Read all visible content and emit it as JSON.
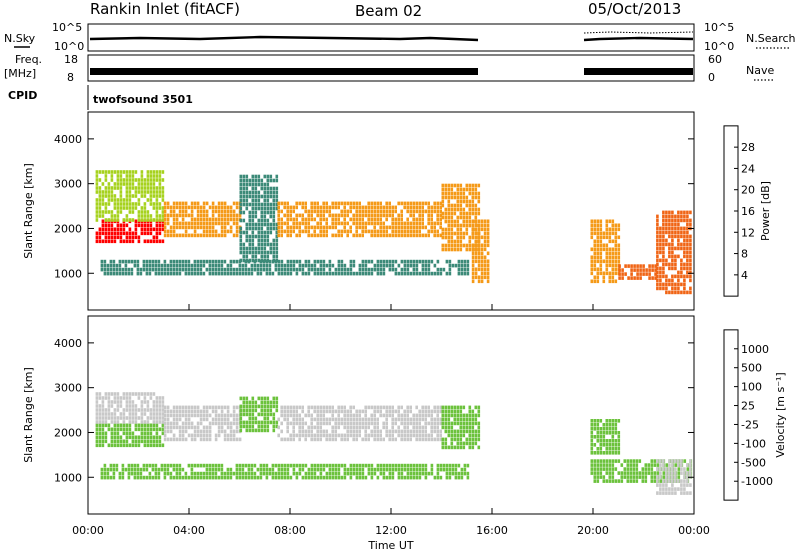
{
  "header": {
    "station": "Rankin Inlet (fitACF)",
    "beam": "Beam 02",
    "date": "05/Oct/2013"
  },
  "top_panels": {
    "nsky_label": "N.Sky",
    "nsky_ticks": [
      "10^5",
      "10^0"
    ],
    "nsearch_label": "N.Search",
    "nsearch_ticks": [
      "10^5",
      "10^0"
    ],
    "freq_label": "Freq.",
    "freq_unit": "[MHz]",
    "freq_ticks": [
      "18",
      "8"
    ],
    "nave_label": "Nave",
    "nave_ticks": [
      "60",
      "0"
    ],
    "cpid_label": "CPID",
    "cpid_value": "twofsound 3501"
  },
  "power_colorbar": {
    "label": "Power [dB]",
    "ticks": [
      "28",
      "24",
      "20",
      "16",
      "12",
      "8",
      "4"
    ],
    "colors": [
      "#0000ff",
      "#1e50c8",
      "#3c8a78",
      "#4cb83e",
      "#a6d21e",
      "#e8c81a",
      "#f59a18",
      "#f06414",
      "#ff0000"
    ]
  },
  "velocity_colorbar": {
    "label": "Velocity  [m s⁻¹]",
    "ticks": [
      "1000",
      "500",
      "100",
      "25",
      "-25",
      "-100",
      "-500",
      "-1000"
    ],
    "colors": [
      "#1e3cc8",
      "#2a6aa8",
      "#3c9a70",
      "#6cc23c",
      "#c8c8c8",
      "#f5a01a",
      "#f06414",
      "#ff0000"
    ]
  },
  "axes": {
    "ylabel": "Slant Range [km]",
    "yticks": [
      "4000",
      "3000",
      "2000",
      "1000"
    ],
    "xlabel": "Time UT",
    "xticks": [
      "00:00",
      "04:00",
      "08:00",
      "12:00",
      "16:00",
      "20:00",
      "00:00"
    ]
  },
  "chart_data": [
    {
      "type": "heatmap",
      "title": "",
      "quantity": "Power",
      "unit": "dB",
      "xlabel": "Time UT",
      "ylabel": "Slant Range [km]",
      "xlim_hours": [
        0,
        24
      ],
      "ylim": [
        180,
        4600
      ],
      "zlim": [
        0,
        30
      ],
      "data_gaps_hours": [
        [
          15.8,
          19.8
        ]
      ],
      "regions": [
        {
          "t": [
            0.3,
            3.0
          ],
          "range": [
            1700,
            2200
          ],
          "value": 29
        },
        {
          "t": [
            0.3,
            3.0
          ],
          "range": [
            2200,
            3300
          ],
          "value": 16
        },
        {
          "t": [
            3.0,
            6.0
          ],
          "range": [
            1800,
            2600
          ],
          "value": 22
        },
        {
          "t": [
            6.0,
            7.5
          ],
          "range": [
            1300,
            3200
          ],
          "value": 9
        },
        {
          "t": [
            7.5,
            14.0
          ],
          "range": [
            1800,
            2600
          ],
          "value": 22
        },
        {
          "t": [
            14.0,
            15.5
          ],
          "range": [
            1500,
            3000
          ],
          "value": 24
        },
        {
          "t": [
            15.2,
            15.8
          ],
          "range": [
            800,
            2200
          ],
          "value": 22
        },
        {
          "t": [
            0.5,
            15.0
          ],
          "range": [
            1000,
            1300
          ],
          "value": 7
        },
        {
          "t": [
            19.9,
            21.0
          ],
          "range": [
            800,
            2200
          ],
          "value": 24
        },
        {
          "t": [
            21.0,
            22.5
          ],
          "range": [
            900,
            1200
          ],
          "value": 26
        },
        {
          "t": [
            22.5,
            23.9
          ],
          "range": [
            600,
            2400
          ],
          "value": 25
        }
      ]
    },
    {
      "type": "heatmap",
      "title": "",
      "quantity": "Velocity",
      "unit": "m s-1",
      "xlabel": "Time UT",
      "ylabel": "Slant Range [km]",
      "xlim_hours": [
        0,
        24
      ],
      "ylim": [
        180,
        4600
      ],
      "zlim": [
        -1000,
        1000
      ],
      "data_gaps_hours": [
        [
          15.8,
          19.8
        ]
      ],
      "regions": [
        {
          "t": [
            0.3,
            3.0
          ],
          "range": [
            1700,
            2200
          ],
          "value": 0
        },
        {
          "t": [
            0.3,
            3.0
          ],
          "range": [
            2200,
            2900
          ],
          "value": -150
        },
        {
          "t": [
            3.0,
            6.0
          ],
          "range": [
            1800,
            2600
          ],
          "value": -200
        },
        {
          "t": [
            6.0,
            7.5
          ],
          "range": [
            2000,
            2800
          ],
          "value": 150
        },
        {
          "t": [
            7.5,
            14.0
          ],
          "range": [
            1800,
            2600
          ],
          "value": -150
        },
        {
          "t": [
            14.0,
            15.5
          ],
          "range": [
            1700,
            2600
          ],
          "value": 0
        },
        {
          "t": [
            0.5,
            15.0
          ],
          "range": [
            1000,
            1300
          ],
          "value": 0
        },
        {
          "t": [
            19.9,
            23.9
          ],
          "range": [
            900,
            1400
          ],
          "value": 0
        },
        {
          "t": [
            19.9,
            21.0
          ],
          "range": [
            1500,
            2300
          ],
          "value": 80
        },
        {
          "t": [
            22.5,
            23.9
          ],
          "range": [
            600,
            1400
          ],
          "value": -150
        }
      ]
    }
  ]
}
